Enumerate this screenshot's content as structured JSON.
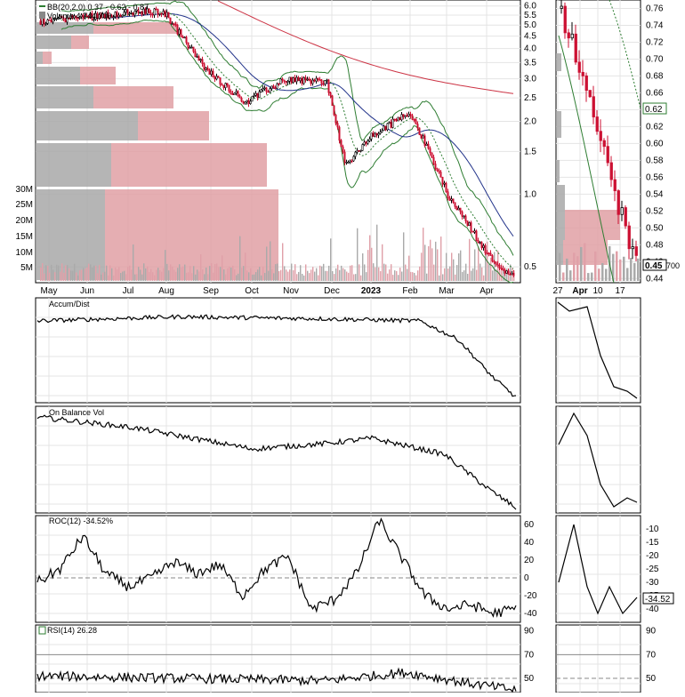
{
  "price_panel": {
    "bb_legend": "BB(20,2.0) 0.37 - 0.62 - 0.87",
    "volume_legend": "Volume 4,744,700",
    "last_price_label": "0.45",
    "last_volume_label": "700",
    "mid_band_label": "0.62"
  },
  "x_axis": {
    "main_months": [
      "May",
      "Jun",
      "Jul",
      "Aug",
      "Sep",
      "Oct",
      "Nov",
      "Dec",
      "2023",
      "Feb",
      "Mar",
      "Apr"
    ],
    "zoom_labels": [
      "27",
      "Apr",
      "10",
      "17"
    ]
  },
  "indicators": {
    "accum_dist": "Accum/Dist",
    "obv": "On Balance Vol",
    "roc": "ROC(12) -34.52%",
    "roc_last": "-34.52",
    "rsi": "RSI(14) 26.28"
  },
  "colors": {
    "up": "#000000",
    "down": "#cc1133",
    "bollinger": "#2e7d32",
    "ma_long": "#cc3344",
    "ma_mid": "#22338a",
    "volume_up": "#aaaaaa",
    "volume_down": "#e0a0a8",
    "profile_gray": "#a8a8a8",
    "profile_red": "#e0a0a4"
  },
  "chart_data": [
    {
      "type": "line",
      "name": "price-candlestick",
      "scale": "log",
      "y_ticks": [
        0.5,
        1.0,
        1.5,
        2.0,
        2.5,
        3.0,
        3.5,
        4.0,
        4.5,
        5.0,
        5.5,
        6.0
      ],
      "volume_ticks": [
        "5M",
        "10M",
        "15M",
        "20M",
        "25M",
        "30M"
      ],
      "price_path": [
        [
          "2022-05-01",
          5.2
        ],
        [
          "2022-06-01",
          5.4
        ],
        [
          "2022-07-01",
          5.6
        ],
        [
          "2022-08-01",
          5.7
        ],
        [
          "2022-09-01",
          3.3
        ],
        [
          "2022-10-01",
          2.4
        ],
        [
          "2022-11-01",
          3.0
        ],
        [
          "2022-12-01",
          2.9
        ],
        [
          "2022-12-15",
          1.3
        ],
        [
          "2023-01-01",
          1.7
        ],
        [
          "2023-02-01",
          2.2
        ],
        [
          "2023-02-20",
          1.3
        ],
        [
          "2023-03-01",
          1.0
        ],
        [
          "2023-03-20",
          0.7
        ],
        [
          "2023-04-01",
          0.55
        ],
        [
          "2023-04-20",
          0.45
        ]
      ]
    },
    {
      "type": "line",
      "name": "price-zoom",
      "y_ticks": [
        0.44,
        0.46,
        0.48,
        0.5,
        0.52,
        0.54,
        0.56,
        0.58,
        0.6,
        0.62,
        0.64,
        0.66,
        0.68,
        0.7,
        0.72,
        0.74,
        0.76
      ],
      "y_range": [
        0.435,
        0.77
      ]
    },
    {
      "type": "line",
      "name": "accum-dist",
      "grid": true
    },
    {
      "type": "line",
      "name": "obv",
      "grid": true
    },
    {
      "type": "line",
      "name": "roc",
      "y_ticks": [
        -40,
        -20,
        0,
        20,
        40,
        60
      ],
      "zoom_ticks": [
        -40,
        -35,
        -30,
        -25,
        -20,
        -15,
        -10
      ],
      "values": [
        -5,
        10,
        47,
        5,
        -10,
        0,
        18,
        5,
        15,
        -20,
        10,
        24,
        -35,
        -25,
        5,
        65,
        22,
        -20,
        -35,
        -30,
        -40,
        -34.52
      ]
    },
    {
      "type": "line",
      "name": "rsi",
      "y_ticks": [
        50,
        70,
        90
      ],
      "value": 26.28
    }
  ]
}
